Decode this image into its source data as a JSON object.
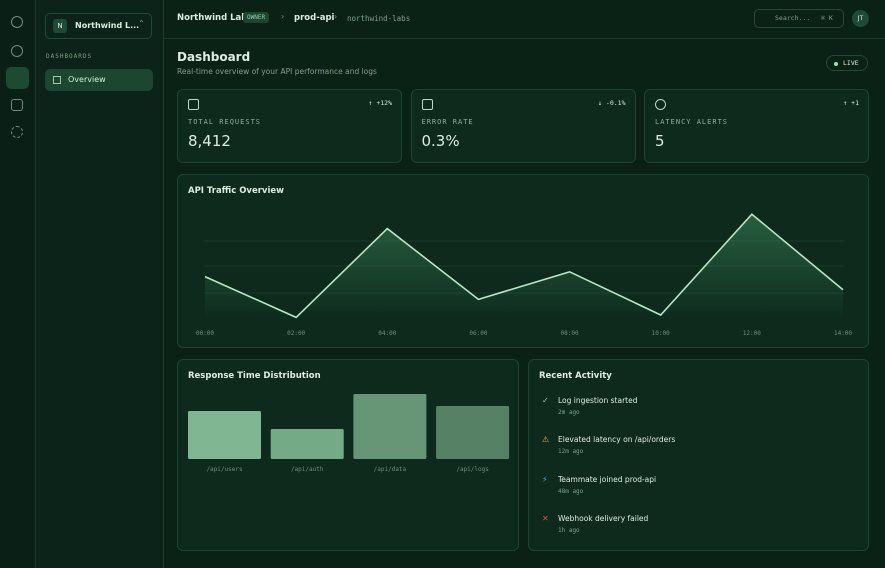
{
  "sidebar": {
    "workspace_initial": "N",
    "workspace": "Northwind L...",
    "section": "DASHBOARDS",
    "nav": [
      "Overview"
    ]
  },
  "topbar": {
    "org": "Northwind Labs",
    "role": "OWNER",
    "project": "prod-api",
    "slug": "northwind-labs",
    "search": "Search...",
    "shortcut": "⌘ K",
    "avatar": "JT"
  },
  "header": {
    "title": "Dashboard",
    "subtitle": "Real-time overview of your API performance and logs",
    "status": "LIVE"
  },
  "stats": [
    {
      "label": "TOTAL REQUESTS",
      "value": "8,412",
      "change": "↑ +12%"
    },
    {
      "label": "ERROR RATE",
      "value": "0.3%",
      "change": "↓ -0.1%"
    },
    {
      "label": "LATENCY ALERTS",
      "value": "5",
      "change": "↑ +1"
    }
  ],
  "chart_data": [
    {
      "type": "line",
      "title": "API Traffic Overview",
      "categories": [
        "00:00",
        "02:00",
        "04:00",
        "06:00",
        "08:00",
        "10:00",
        "12:00",
        "14:00"
      ],
      "values": [
        37,
        3,
        77,
        18,
        41,
        5,
        89,
        26
      ],
      "ylim": [
        0,
        100
      ],
      "color": "#b9e6c4"
    },
    {
      "type": "bar",
      "title": "Response Time Distribution",
      "categories": [
        "/api/users",
        "/api/auth",
        "/api/data",
        "/api/logs"
      ],
      "values": [
        48,
        30,
        65,
        53
      ],
      "ylim": [
        0,
        70
      ],
      "colors": [
        "#80b792",
        "#75aa86",
        "#679677",
        "#578165"
      ]
    }
  ],
  "activity": {
    "title": "Recent Activity",
    "items": [
      {
        "text": "Log ingestion started",
        "time": "2m ago"
      },
      {
        "text": "Elevated latency on /api/orders",
        "time": "12m ago"
      },
      {
        "text": "Teammate joined prod-api",
        "time": "48m ago"
      },
      {
        "text": "Webhook delivery failed",
        "time": "1h ago"
      }
    ]
  }
}
